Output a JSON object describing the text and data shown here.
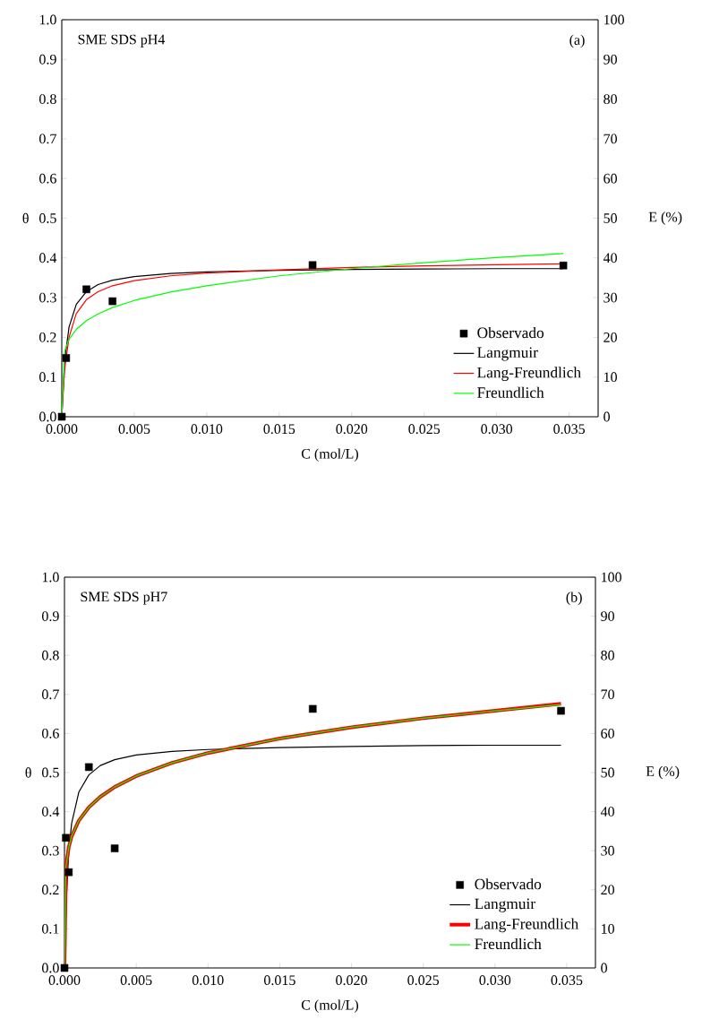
{
  "chart_data": [
    {
      "type": "line",
      "xlabel": "C (mol/L)",
      "ylabel": "θ",
      "y2label": "E (%)",
      "annotations": [
        "SME SDS pH4",
        "(a)"
      ],
      "xlim": [
        0,
        0.037
      ],
      "ylim": [
        0,
        1
      ],
      "y2lim": [
        0,
        100
      ],
      "xticks": [
        {
          "value": 0,
          "label": "0.000"
        },
        {
          "value": 0.005,
          "label": "0.005"
        },
        {
          "value": 0.01,
          "label": "0.010"
        },
        {
          "value": 0.015,
          "label": "0.015"
        },
        {
          "value": 0.02,
          "label": "0.020"
        },
        {
          "value": 0.025,
          "label": "0.025"
        },
        {
          "value": 0.03,
          "label": "0.030"
        },
        {
          "value": 0.035,
          "label": "0.035"
        }
      ],
      "yticks": [
        {
          "value": 0,
          "label": "0.0"
        },
        {
          "value": 0.1,
          "label": "0.1"
        },
        {
          "value": 0.2,
          "label": "0.2"
        },
        {
          "value": 0.3,
          "label": "0.3"
        },
        {
          "value": 0.4,
          "label": "0.4"
        },
        {
          "value": 0.5,
          "label": "0.5"
        },
        {
          "value": 0.6,
          "label": "0.6"
        },
        {
          "value": 0.7,
          "label": "0.7"
        },
        {
          "value": 0.8,
          "label": "0.8"
        },
        {
          "value": 0.9,
          "label": "0.9"
        },
        {
          "value": 1,
          "label": "1.0"
        }
      ],
      "y2ticks": [
        0,
        10,
        20,
        30,
        40,
        50,
        60,
        70,
        80,
        90,
        100
      ],
      "legend": "bottom right",
      "grid": false,
      "series": [
        {
          "name": "Observado",
          "type": "scatter",
          "marker": "square",
          "color": "#000000",
          "x": [
            0,
            0.0003,
            0.0017,
            0.0035,
            0.0173,
            0.0346
          ],
          "values": [
            0,
            0.148,
            0.321,
            0.291,
            0.382,
            0.381
          ]
        },
        {
          "name": "Langmuir",
          "type": "line",
          "color": "#000000",
          "x": [
            0,
            0.0002,
            0.0005,
            0.001,
            0.0017,
            0.0025,
            0.0035,
            0.005,
            0.0075,
            0.01,
            0.015,
            0.02,
            0.025,
            0.03,
            0.0346
          ],
          "values": [
            0,
            0.141,
            0.226,
            0.283,
            0.315,
            0.333,
            0.344,
            0.353,
            0.361,
            0.365,
            0.369,
            0.371,
            0.372,
            0.373,
            0.373
          ]
        },
        {
          "name": "Lang-Freundlich",
          "type": "line",
          "color": "#ff0000",
          "x": [
            0,
            0.0002,
            0.0005,
            0.001,
            0.0017,
            0.0025,
            0.0035,
            0.005,
            0.0075,
            0.01,
            0.015,
            0.02,
            0.025,
            0.03,
            0.0346
          ],
          "values": [
            0,
            0.12,
            0.2,
            0.26,
            0.295,
            0.315,
            0.33,
            0.343,
            0.355,
            0.362,
            0.37,
            0.376,
            0.38,
            0.383,
            0.385
          ]
        },
        {
          "name": "Freundlich",
          "type": "line",
          "color": "#00ff00",
          "x": [
            0,
            0.0002,
            0.0005,
            0.001,
            0.0017,
            0.0025,
            0.0035,
            0.005,
            0.0075,
            0.01,
            0.015,
            0.02,
            0.025,
            0.03,
            0.0346
          ],
          "values": [
            0,
            0.166,
            0.195,
            0.22,
            0.242,
            0.259,
            0.275,
            0.293,
            0.314,
            0.33,
            0.355,
            0.373,
            0.388,
            0.401,
            0.411
          ]
        }
      ]
    },
    {
      "type": "line",
      "xlabel": "C (mol/L)",
      "ylabel": "θ",
      "y2label": "E (%)",
      "annotations": [
        "SME SDS pH7",
        "(b)"
      ],
      "xlim": [
        0,
        0.037
      ],
      "ylim": [
        0,
        1
      ],
      "y2lim": [
        0,
        100
      ],
      "xticks": [
        {
          "value": 0,
          "label": "0.000"
        },
        {
          "value": 0.005,
          "label": "0.005"
        },
        {
          "value": 0.01,
          "label": "0.010"
        },
        {
          "value": 0.015,
          "label": "0.015"
        },
        {
          "value": 0.02,
          "label": "0.020"
        },
        {
          "value": 0.025,
          "label": "0.025"
        },
        {
          "value": 0.03,
          "label": "0.030"
        },
        {
          "value": 0.035,
          "label": "0.035"
        }
      ],
      "yticks": [
        {
          "value": 0,
          "label": "0.0"
        },
        {
          "value": 0.1,
          "label": "0.1"
        },
        {
          "value": 0.2,
          "label": "0.2"
        },
        {
          "value": 0.3,
          "label": "0.3"
        },
        {
          "value": 0.4,
          "label": "0.4"
        },
        {
          "value": 0.5,
          "label": "0.5"
        },
        {
          "value": 0.6,
          "label": "0.6"
        },
        {
          "value": 0.7,
          "label": "0.7"
        },
        {
          "value": 0.8,
          "label": "0.8"
        },
        {
          "value": 0.9,
          "label": "0.9"
        },
        {
          "value": 1,
          "label": "1.0"
        }
      ],
      "y2ticks": [
        0,
        10,
        20,
        30,
        40,
        50,
        60,
        70,
        80,
        90,
        100
      ],
      "legend": "bottom right",
      "grid": false,
      "series": [
        {
          "name": "Observado",
          "type": "scatter",
          "marker": "square",
          "color": "#000000",
          "x": [
            0,
            0.0001,
            0.0003,
            0.0017,
            0.0035,
            0.0173,
            0.0346
          ],
          "values": [
            0,
            0.333,
            0.245,
            0.514,
            0.306,
            0.663,
            0.658
          ]
        },
        {
          "name": "Langmuir",
          "type": "line",
          "color": "#000000",
          "x": [
            0,
            0.0001,
            0.0003,
            0.0005,
            0.001,
            0.0017,
            0.0025,
            0.0035,
            0.005,
            0.0075,
            0.01,
            0.015,
            0.02,
            0.025,
            0.03,
            0.0346
          ],
          "values": [
            0,
            0.152,
            0.299,
            0.37,
            0.45,
            0.494,
            0.518,
            0.533,
            0.545,
            0.554,
            0.559,
            0.564,
            0.567,
            0.569,
            0.57,
            0.57
          ]
        },
        {
          "name": "Lang-Freundlich",
          "type": "line",
          "color": "#ff0000",
          "x": [
            0,
            0.0001,
            0.0003,
            0.0005,
            0.001,
            0.0017,
            0.0025,
            0.0035,
            0.005,
            0.0075,
            0.01,
            0.015,
            0.02,
            0.025,
            0.03,
            0.0346
          ],
          "values": [
            0,
            0.258,
            0.309,
            0.337,
            0.377,
            0.411,
            0.438,
            0.463,
            0.491,
            0.525,
            0.55,
            0.587,
            0.616,
            0.639,
            0.658,
            0.676
          ]
        },
        {
          "name": "Freundlich",
          "type": "line",
          "color": "#00ff00",
          "x": [
            0,
            0.0001,
            0.0003,
            0.0005,
            0.001,
            0.0017,
            0.0025,
            0.0035,
            0.005,
            0.0075,
            0.01,
            0.015,
            0.02,
            0.025,
            0.03,
            0.0346
          ],
          "values": [
            0,
            0.258,
            0.309,
            0.337,
            0.377,
            0.411,
            0.438,
            0.463,
            0.491,
            0.525,
            0.55,
            0.587,
            0.616,
            0.639,
            0.658,
            0.674
          ]
        }
      ]
    }
  ]
}
